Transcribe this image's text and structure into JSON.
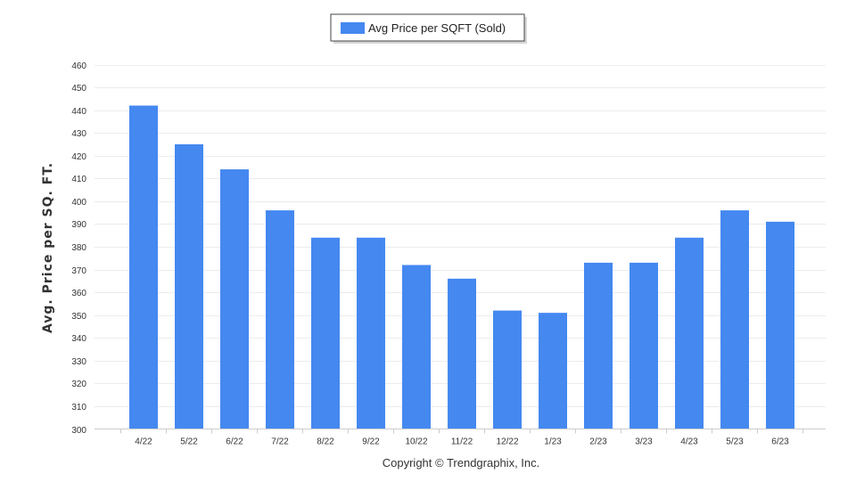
{
  "chart_data": {
    "type": "bar",
    "title": "",
    "xlabel": "",
    "ylabel": "Avg. Price per SQ. FT.",
    "categories": [
      "4/22",
      "5/22",
      "6/22",
      "7/22",
      "8/22",
      "9/22",
      "10/22",
      "11/22",
      "12/22",
      "1/23",
      "2/23",
      "3/23",
      "4/23",
      "5/23",
      "6/23"
    ],
    "series": [
      {
        "name": "Avg Price per SQFT (Sold)",
        "color": "#4488f0",
        "values": [
          442,
          425,
          414,
          396,
          384,
          384,
          372,
          366,
          352,
          351,
          373,
          373,
          384,
          396,
          391
        ]
      }
    ],
    "ylim": [
      300,
      460
    ],
    "ytick_step": 10,
    "yticks": [
      "300",
      "310",
      "320",
      "330",
      "340",
      "350",
      "360",
      "370",
      "380",
      "390",
      "400",
      "410",
      "420",
      "430",
      "440",
      "450",
      "460"
    ],
    "grid": true,
    "legend_position": "top-center"
  },
  "footer": {
    "copyright": "Copyright © Trendgraphix, Inc."
  }
}
